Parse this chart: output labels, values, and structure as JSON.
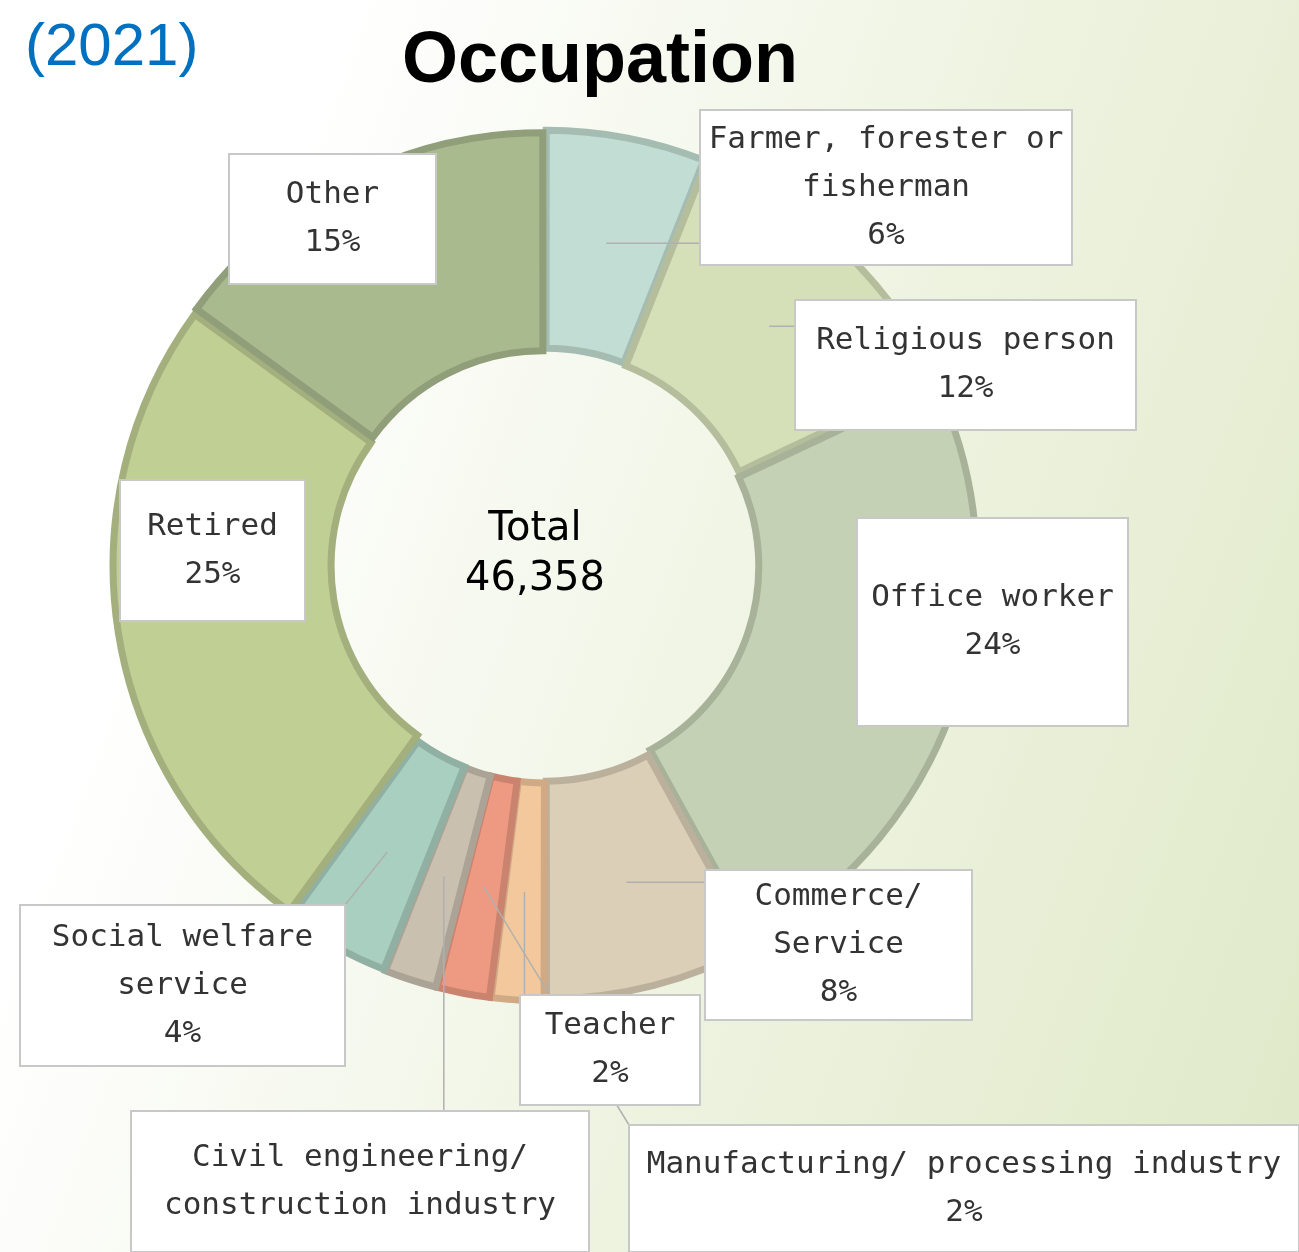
{
  "chart_data": {
    "type": "donut",
    "title": "Occupation",
    "categories": [
      "Farmer, forester or fisherman",
      "Religious person",
      "Office worker",
      "Commerce/ Service",
      "Teacher",
      "Manufacturing/ processing industry",
      "Civil engineering/ construction industry",
      "Social welfare service",
      "Retired",
      "Other"
    ],
    "values": [
      6,
      12,
      24,
      8,
      2,
      2,
      2,
      4,
      25,
      15
    ],
    "value_labels": [
      "6%",
      "12%",
      "24%",
      "8%",
      "2%",
      "2%",
      null,
      "4%",
      "25%",
      "15%"
    ],
    "colors": [
      "#c2ddd3",
      "#d5e0b8",
      "#c5d1b4",
      "#dbcfb7",
      "#f3c89d",
      "#ee9a82",
      "#c9c0b0",
      "#a9cfc0",
      "#c0cf93",
      "#a9ba8f"
    ],
    "legend": false,
    "annotations": [
      "(2021)",
      "Total",
      "46,358"
    ]
  }
}
